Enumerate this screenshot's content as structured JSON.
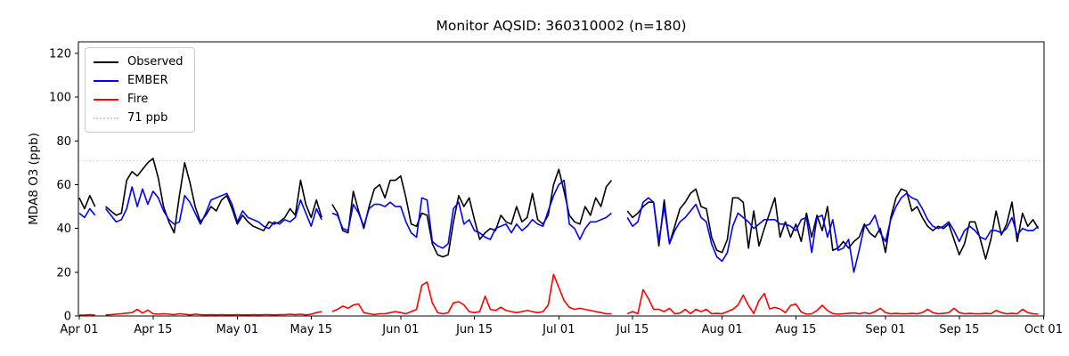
{
  "chart_data": {
    "type": "line",
    "title": "Monitor AQSID: 360310002 (n=180)",
    "ylabel": "MDA8 O3 (ppb)",
    "xlabel": "",
    "grid": false,
    "legend_position": "upper-left",
    "ylim": [
      0,
      125
    ],
    "y_ticks": [
      0,
      20,
      40,
      60,
      80,
      100,
      120
    ],
    "x_ticks": [
      {
        "day": 0,
        "label": "Apr 01"
      },
      {
        "day": 14,
        "label": "Apr 15"
      },
      {
        "day": 30,
        "label": "May 01"
      },
      {
        "day": 44,
        "label": "May 15"
      },
      {
        "day": 61,
        "label": "Jun 01"
      },
      {
        "day": 75,
        "label": "Jun 15"
      },
      {
        "day": 91,
        "label": "Jul 01"
      },
      {
        "day": 105,
        "label": "Jul 15"
      },
      {
        "day": 122,
        "label": "Aug 01"
      },
      {
        "day": 136,
        "label": "Aug 15"
      },
      {
        "day": 153,
        "label": "Sep 01"
      },
      {
        "day": 167,
        "label": "Sep 15"
      },
      {
        "day": 183,
        "label": "Oct 01"
      }
    ],
    "x_description": "Daily values; index = days after Apr 01 (0 = Apr 01, 182 = Sep 30); null = missing day",
    "ref_line": {
      "value": 71,
      "label": "71 ppb",
      "color": "#d3d3d3",
      "style": "dotted"
    },
    "series": [
      {
        "name": "Observed",
        "color": "#000000",
        "values": [
          54,
          49,
          55,
          50,
          null,
          50,
          48,
          46,
          47,
          62,
          66,
          64,
          67,
          70,
          72,
          63,
          50,
          43,
          38,
          55,
          70,
          61,
          50,
          43,
          46,
          50,
          48,
          53,
          55,
          49,
          42,
          46,
          43,
          41,
          40,
          39,
          43,
          42,
          43,
          45,
          49,
          46,
          62,
          51,
          45,
          53,
          45,
          null,
          51,
          47,
          39,
          38,
          57,
          48,
          40,
          50,
          58,
          60,
          54,
          62,
          62,
          64,
          54,
          42,
          41,
          47,
          46,
          33,
          28,
          27,
          28,
          43,
          55,
          50,
          54,
          44,
          35,
          38,
          40,
          39,
          46,
          43,
          42,
          50,
          43,
          45,
          56,
          44,
          42,
          46,
          60,
          67,
          57,
          46,
          43,
          42,
          50,
          46,
          54,
          50,
          59,
          62,
          null,
          null,
          48,
          45,
          47,
          50,
          52,
          52,
          32,
          53,
          33,
          41,
          49,
          52,
          56,
          58,
          50,
          49,
          36,
          30,
          29,
          35,
          54,
          54,
          52,
          31,
          48,
          32,
          40,
          47,
          54,
          36,
          43,
          36,
          42,
          34,
          47,
          36,
          46,
          39,
          50,
          30,
          31,
          34,
          31,
          34,
          36,
          42,
          38,
          36,
          40,
          29,
          45,
          54,
          58,
          57,
          48,
          50,
          45,
          41,
          39,
          41,
          40,
          42,
          35,
          28,
          33,
          43,
          43,
          35,
          26,
          35,
          48,
          37,
          42,
          52,
          34,
          47,
          41,
          44,
          40
        ]
      },
      {
        "name": "EMBER",
        "color": "#0000ff",
        "values": [
          47,
          45,
          49,
          46,
          null,
          49,
          46,
          43,
          44,
          49,
          59,
          50,
          58,
          51,
          57,
          54,
          48,
          44,
          42,
          43,
          55,
          52,
          47,
          42,
          47,
          53,
          54,
          55,
          56,
          51,
          43,
          48,
          45,
          44,
          43,
          41,
          40,
          43,
          42,
          44,
          43,
          45,
          53,
          47,
          41,
          49,
          44,
          null,
          47,
          46,
          40,
          39,
          51,
          47,
          41,
          49,
          51,
          51,
          50,
          52,
          50,
          50,
          43,
          38,
          36,
          54,
          53,
          34,
          32,
          31,
          33,
          49,
          52,
          42,
          44,
          39,
          38,
          36,
          35,
          40,
          41,
          42,
          38,
          42,
          39,
          41,
          44,
          42,
          41,
          48,
          55,
          60,
          62,
          42,
          40,
          35,
          40,
          43,
          43,
          44,
          45,
          47,
          null,
          null,
          45,
          41,
          43,
          52,
          54,
          52,
          34,
          50,
          33,
          39,
          43,
          45,
          48,
          51,
          45,
          43,
          33,
          27,
          25,
          29,
          41,
          47,
          45,
          43,
          40,
          42,
          44,
          44,
          44,
          42,
          42,
          41,
          39,
          44,
          45,
          29,
          45,
          46,
          36,
          44,
          30,
          31,
          35,
          20,
          30,
          41,
          42,
          46,
          38,
          34,
          44,
          50,
          54,
          56,
          54,
          53,
          49,
          44,
          41,
          40,
          41,
          43,
          39,
          34,
          39,
          41,
          39,
          36,
          35,
          39,
          39,
          38,
          40,
          45,
          37,
          40,
          39,
          39,
          41
        ]
      },
      {
        "name": "Fire",
        "color": "#ff0000",
        "values": [
          0.4,
          0.4,
          0.6,
          0.4,
          null,
          0.5,
          0.6,
          0.8,
          1,
          1.3,
          1.5,
          3,
          1.3,
          2.7,
          1,
          0.8,
          1,
          0.8,
          0.6,
          1,
          0.8,
          0.5,
          0.8,
          0.6,
          0.5,
          0.6,
          0.5,
          0.6,
          0.5,
          0.5,
          0.6,
          0.5,
          0.5,
          0.6,
          0.5,
          0.6,
          0.6,
          0.5,
          0.6,
          0.6,
          0.8,
          0.6,
          0.8,
          0.5,
          0.8,
          1.5,
          2,
          null,
          2,
          3,
          4.5,
          3.5,
          5,
          5.5,
          1.5,
          1,
          0.6,
          1,
          1,
          1.5,
          2,
          1.5,
          1,
          2,
          3,
          14,
          15.5,
          6,
          1.5,
          1,
          1.5,
          6,
          6.5,
          5,
          2,
          1.5,
          2,
          9,
          3,
          2.5,
          4,
          2.5,
          2,
          1.5,
          2,
          2.5,
          2,
          1.5,
          2,
          5,
          19,
          13,
          7,
          4,
          3,
          3.5,
          3,
          2.5,
          2,
          1.5,
          1,
          1,
          null,
          null,
          1,
          2,
          1,
          12,
          8,
          3,
          3,
          2,
          3.5,
          1,
          1.3,
          3,
          1,
          3,
          2,
          3,
          1,
          1.2,
          1,
          2,
          3,
          5,
          9.5,
          4.8,
          1.1,
          7,
          10.3,
          3.2,
          3.9,
          3.2,
          1.5,
          4.8,
          5.4,
          1.8,
          0.8,
          1,
          2.5,
          4.9,
          2.5,
          1.1,
          0.8,
          1,
          1.2,
          1.4,
          1,
          1.5,
          1,
          2,
          3.5,
          1.5,
          1,
          1.2,
          1,
          1,
          1.2,
          1,
          1.5,
          3,
          1.5,
          1,
          1.2,
          1.5,
          3.5,
          1.5,
          1,
          1.2,
          1,
          1,
          1.2,
          1,
          2.5,
          1.5,
          1,
          1.2,
          1,
          3,
          1.5,
          1,
          0.8
        ]
      }
    ]
  }
}
